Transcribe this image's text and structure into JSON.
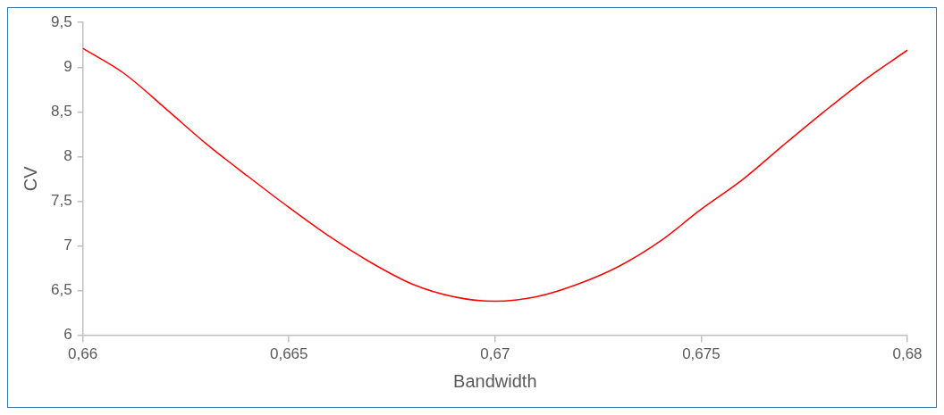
{
  "chart_data": {
    "type": "line",
    "xlabel": "Bandwidth",
    "ylabel": "CV",
    "x": [
      0.66,
      0.661,
      0.662,
      0.663,
      0.664,
      0.665,
      0.666,
      0.667,
      0.668,
      0.669,
      0.67,
      0.671,
      0.672,
      0.673,
      0.674,
      0.675,
      0.676,
      0.677,
      0.678,
      0.679,
      0.68
    ],
    "series": [
      {
        "color": "#ff0000",
        "values": [
          9.21,
          8.93,
          8.54,
          8.14,
          7.78,
          7.43,
          7.1,
          6.81,
          6.57,
          6.43,
          6.38,
          6.43,
          6.57,
          6.77,
          7.05,
          7.41,
          7.74,
          8.13,
          8.51,
          8.87,
          9.19
        ]
      }
    ],
    "xlim": [
      0.66,
      0.68
    ],
    "xticks": [
      {
        "value": 0.66,
        "label": "0,66"
      },
      {
        "value": 0.665,
        "label": "0,665"
      },
      {
        "value": 0.67,
        "label": "0,67"
      },
      {
        "value": 0.675,
        "label": "0,675"
      },
      {
        "value": 0.68,
        "label": "0,68"
      }
    ],
    "ylim": [
      6,
      9.5
    ],
    "yticks": [
      6,
      {
        "value": 6.5,
        "label": "6,5"
      },
      7,
      {
        "value": 7.5,
        "label": "7,5"
      },
      8,
      {
        "value": 8.5,
        "label": "8,5"
      },
      9,
      {
        "value": 9.5,
        "label": "9,5"
      }
    ],
    "grid": false,
    "legend": false,
    "marker": "none",
    "line_style": "solid"
  }
}
